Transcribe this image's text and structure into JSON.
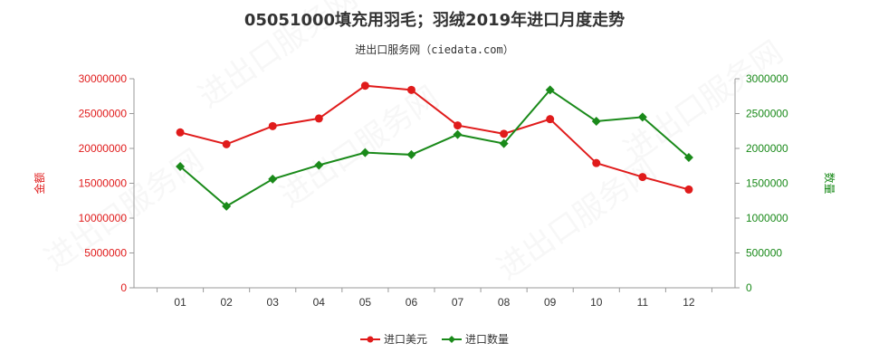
{
  "chart_data": {
    "type": "line",
    "title": "05051000填充用羽毛；羽绒2019年进口月度走势",
    "subtitle": "进出口服务网（ciedata.com）",
    "categories": [
      "01",
      "02",
      "03",
      "04",
      "05",
      "06",
      "07",
      "08",
      "09",
      "10",
      "11",
      "12"
    ],
    "y_left": {
      "label": "金额",
      "range": [
        0,
        30000000
      ],
      "ticks": [
        "0",
        "5000000",
        "10000000",
        "15000000",
        "20000000",
        "25000000",
        "30000000"
      ],
      "color": "#e01b1b"
    },
    "y_right": {
      "label": "数量",
      "range": [
        0,
        3000000
      ],
      "ticks": [
        "0",
        "500000",
        "1000000",
        "1500000",
        "2000000",
        "2500000",
        "3000000"
      ],
      "color": "#1a8a1a"
    },
    "series": [
      {
        "name": "进口美元",
        "axis": "left",
        "color": "#e01b1b",
        "marker": "circle",
        "values": [
          22300000,
          20600000,
          23200000,
          24300000,
          29000000,
          28400000,
          23300000,
          22100000,
          24200000,
          17900000,
          15900000,
          14100000
        ]
      },
      {
        "name": "进口数量",
        "axis": "right",
        "color": "#1a8a1a",
        "marker": "diamond",
        "values": [
          1740000,
          1170000,
          1560000,
          1760000,
          1940000,
          1910000,
          2200000,
          2070000,
          2840000,
          2390000,
          2450000,
          1870000
        ]
      }
    ],
    "legend_position": "bottom",
    "grid": false
  }
}
